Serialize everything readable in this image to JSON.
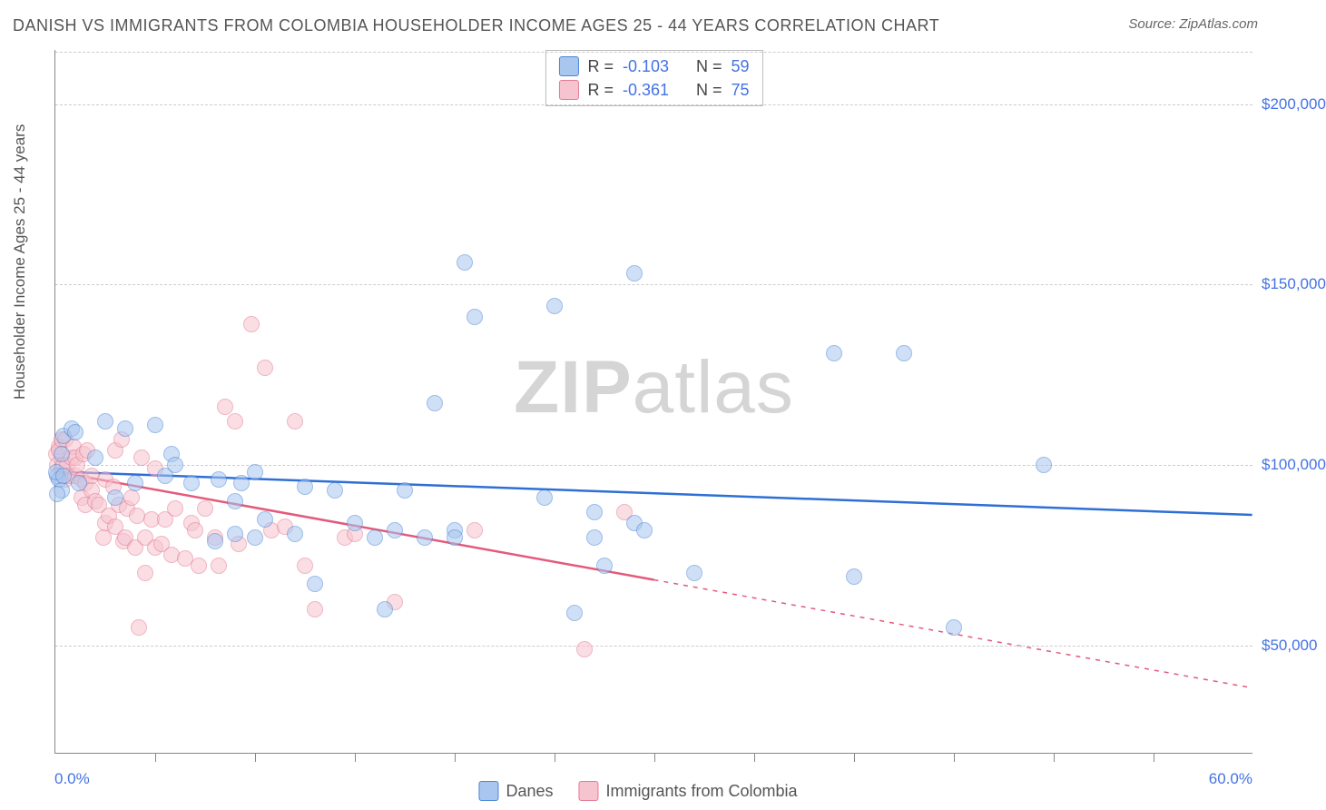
{
  "title": "DANISH VS IMMIGRANTS FROM COLOMBIA HOUSEHOLDER INCOME AGES 25 - 44 YEARS CORRELATION CHART",
  "source_label": "Source:",
  "source_name": "ZipAtlas.com",
  "ylabel": "Householder Income Ages 25 - 44 years",
  "watermark_a": "ZIP",
  "watermark_b": "atlas",
  "xaxis": {
    "min": 0.0,
    "max": 60.0,
    "left_label": "0.0%",
    "right_label": "60.0%",
    "tick_positions": [
      5,
      10,
      15,
      20,
      25,
      30,
      35,
      40,
      45,
      50,
      55
    ]
  },
  "yaxis": {
    "min": 20000,
    "max": 215000,
    "ticks": [
      {
        "v": 50000,
        "label": "$50,000"
      },
      {
        "v": 100000,
        "label": "$100,000"
      },
      {
        "v": 150000,
        "label": "$150,000"
      },
      {
        "v": 200000,
        "label": "$200,000"
      }
    ]
  },
  "legend_bottom": {
    "series1": "Danes",
    "series2": "Immigrants from Colombia"
  },
  "stats": {
    "r_label": "R =",
    "n_label": "N =",
    "s1_r": "-0.103",
    "s1_n": "59",
    "s2_r": "-0.361",
    "s2_n": "75"
  },
  "colors": {
    "blue_fill": "#a9c6ef",
    "blue_stroke": "#4a87d8",
    "blue_line": "#2e6fd6",
    "pink_fill": "#f6c4cf",
    "pink_stroke": "#e47a92",
    "pink_line": "#e45a7b",
    "grid": "#cccccc",
    "axis": "#888888",
    "tick_text": "#4472e4",
    "title_text": "#555555",
    "watermark": "#d5d5d5",
    "bg": "#ffffff"
  },
  "style": {
    "point_radius": 9,
    "point_opacity": 0.55,
    "line_width": 2.5,
    "title_fontsize": 18,
    "label_fontsize": 17,
    "legend_fontsize": 18
  },
  "reg_lines": {
    "blue": {
      "x1": 0,
      "y1": 98000,
      "x2": 60,
      "y2": 86000,
      "solid_until": 60
    },
    "pink": {
      "x1": 0,
      "y1": 98000,
      "x2": 60,
      "y2": 38000,
      "solid_until": 30
    }
  },
  "series": {
    "blue": [
      [
        0.1,
        97000
      ],
      [
        0.2,
        96000
      ],
      [
        0.3,
        103000
      ],
      [
        0.3,
        93000
      ],
      [
        0.4,
        108000
      ],
      [
        0.8,
        110000
      ],
      [
        1.0,
        109000
      ],
      [
        1.2,
        95000
      ],
      [
        2,
        102000
      ],
      [
        2.5,
        112000
      ],
      [
        3.5,
        110000
      ],
      [
        4,
        95000
      ],
      [
        5,
        111000
      ],
      [
        5.5,
        97000
      ],
      [
        5.8,
        103000
      ],
      [
        6.8,
        95000
      ],
      [
        8,
        79000
      ],
      [
        8.2,
        96000
      ],
      [
        9,
        81000
      ],
      [
        9,
        90000
      ],
      [
        9.3,
        95000
      ],
      [
        10,
        98000
      ],
      [
        10,
        80000
      ],
      [
        12,
        81000
      ],
      [
        12.5,
        94000
      ],
      [
        13,
        67000
      ],
      [
        14,
        93000
      ],
      [
        15,
        84000
      ],
      [
        16,
        80000
      ],
      [
        16.5,
        60000
      ],
      [
        17,
        82000
      ],
      [
        17.5,
        93000
      ],
      [
        18.5,
        80000
      ],
      [
        19,
        117000
      ],
      [
        20,
        82000
      ],
      [
        20,
        80000
      ],
      [
        20.5,
        156000
      ],
      [
        21,
        141000
      ],
      [
        24.5,
        91000
      ],
      [
        25,
        144000
      ],
      [
        26,
        59000
      ],
      [
        27,
        80000
      ],
      [
        27,
        87000
      ],
      [
        27.5,
        72000
      ],
      [
        29,
        153000
      ],
      [
        29,
        84000
      ],
      [
        29.5,
        82000
      ],
      [
        32,
        70000
      ],
      [
        39,
        131000
      ],
      [
        40,
        69000
      ],
      [
        42.5,
        131000
      ],
      [
        45,
        55000
      ],
      [
        49.5,
        100000
      ],
      [
        0.1,
        92000
      ],
      [
        0.05,
        98000
      ],
      [
        0.4,
        97000
      ],
      [
        3,
        91000
      ],
      [
        6,
        100000
      ],
      [
        10.5,
        85000
      ]
    ],
    "pink": [
      [
        0.05,
        103000
      ],
      [
        0.1,
        100000
      ],
      [
        0.2,
        105000
      ],
      [
        0.2,
        104000
      ],
      [
        0.3,
        99000
      ],
      [
        0.3,
        107000
      ],
      [
        0.4,
        100000
      ],
      [
        0.5,
        107000
      ],
      [
        0.5,
        96000
      ],
      [
        0.6,
        100000
      ],
      [
        0.7,
        97000
      ],
      [
        0.8,
        102000
      ],
      [
        0.9,
        105000
      ],
      [
        1.0,
        97000
      ],
      [
        1.0,
        102000
      ],
      [
        1.1,
        100000
      ],
      [
        1.3,
        96000
      ],
      [
        1.3,
        91000
      ],
      [
        1.4,
        103000
      ],
      [
        1.5,
        89000
      ],
      [
        1.5,
        95000
      ],
      [
        1.6,
        104000
      ],
      [
        1.8,
        93000
      ],
      [
        1.8,
        97000
      ],
      [
        2.0,
        90000
      ],
      [
        2.2,
        89000
      ],
      [
        2.4,
        80000
      ],
      [
        2.5,
        96000
      ],
      [
        2.5,
        84000
      ],
      [
        2.7,
        86000
      ],
      [
        2.9,
        94000
      ],
      [
        3.0,
        104000
      ],
      [
        3.0,
        83000
      ],
      [
        3.2,
        89000
      ],
      [
        3.3,
        107000
      ],
      [
        3.4,
        79000
      ],
      [
        3.5,
        80000
      ],
      [
        3.6,
        88000
      ],
      [
        3.8,
        91000
      ],
      [
        4.0,
        77000
      ],
      [
        4.1,
        86000
      ],
      [
        4.3,
        102000
      ],
      [
        4.5,
        80000
      ],
      [
        4.5,
        70000
      ],
      [
        4.8,
        85000
      ],
      [
        5.0,
        99000
      ],
      [
        5.0,
        77000
      ],
      [
        5.3,
        78000
      ],
      [
        5.5,
        85000
      ],
      [
        5.8,
        75000
      ],
      [
        6.0,
        88000
      ],
      [
        6.5,
        74000
      ],
      [
        6.8,
        84000
      ],
      [
        7.0,
        82000
      ],
      [
        7.2,
        72000
      ],
      [
        7.5,
        88000
      ],
      [
        8.0,
        80000
      ],
      [
        8.2,
        72000
      ],
      [
        8.5,
        116000
      ],
      [
        9.0,
        112000
      ],
      [
        9.2,
        78000
      ],
      [
        9.8,
        139000
      ],
      [
        10.5,
        127000
      ],
      [
        10.8,
        82000
      ],
      [
        11.5,
        83000
      ],
      [
        12.0,
        112000
      ],
      [
        12.5,
        72000
      ],
      [
        13.0,
        60000
      ],
      [
        14.5,
        80000
      ],
      [
        15.0,
        81000
      ],
      [
        17.0,
        62000
      ],
      [
        21.0,
        82000
      ],
      [
        26.5,
        49000
      ],
      [
        28.5,
        87000
      ],
      [
        4.2,
        55000
      ]
    ]
  }
}
